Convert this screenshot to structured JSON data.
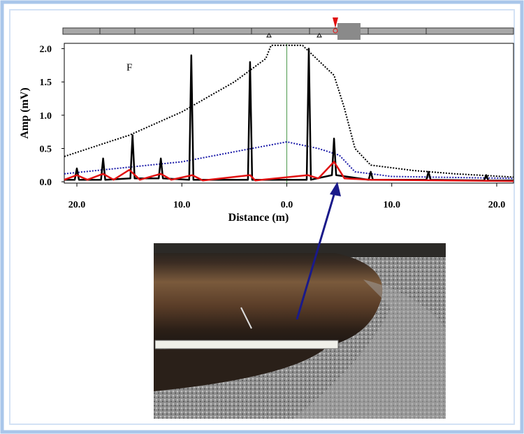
{
  "chart_data": {
    "type": "line",
    "y_label": "Amp (mV)",
    "x_label": "Distance (m)",
    "annotation": "F",
    "xlim": [
      -21.2,
      21.6
    ],
    "ylim": [
      -0.02,
      2.08
    ],
    "xticks": [
      {
        "value": -20,
        "label": "20.0"
      },
      {
        "value": -10,
        "label": "10.0"
      },
      {
        "value": 0,
        "label": "0.0"
      },
      {
        "value": 10,
        "label": "10.0"
      },
      {
        "value": 20,
        "label": "20.0"
      }
    ],
    "yticks": [
      {
        "value": 0,
        "label": "0.0"
      },
      {
        "value": 0.5,
        "label": "0.5"
      },
      {
        "value": 1,
        "label": "1.0"
      },
      {
        "value": 1.5,
        "label": "1.5"
      },
      {
        "value": 2,
        "label": "2.0"
      }
    ],
    "series": [
      {
        "color": "#000000",
        "style": "dotted",
        "x": [
          -21.2,
          -15,
          -10,
          -5,
          -2,
          -1.5,
          1.5,
          4.5,
          5.5,
          6.5,
          8,
          12,
          16,
          21.6
        ],
        "values": [
          0.38,
          0.7,
          1.05,
          1.5,
          1.85,
          2.05,
          2.05,
          1.6,
          1.1,
          0.5,
          0.25,
          0.17,
          0.12,
          0.07
        ]
      },
      {
        "color": "#1a1aa8",
        "style": "dotted",
        "x": [
          -21.2,
          -10,
          -5,
          0,
          3,
          5,
          6.5,
          10,
          21.6
        ],
        "values": [
          0.12,
          0.3,
          0.45,
          0.6,
          0.5,
          0.4,
          0.15,
          0.08,
          0.05
        ]
      },
      {
        "color": "#000000",
        "style": "solid",
        "x": [
          -21.2,
          -20.2,
          -20,
          -19.8,
          -17.7,
          -17.5,
          -17.3,
          -14.9,
          -14.7,
          -14.5,
          -12.2,
          -12,
          -11.8,
          -9.3,
          -9.1,
          -8.9,
          -3.7,
          -3.5,
          -3.3,
          1.9,
          2.1,
          2.3,
          4.3,
          4.5,
          4.7,
          7.8,
          8,
          8.2,
          13.3,
          13.5,
          13.7,
          18.8,
          19,
          19.2,
          21.6
        ],
        "values": [
          0.03,
          0.03,
          0.2,
          0.03,
          0.03,
          0.35,
          0.03,
          0.05,
          0.7,
          0.05,
          0.05,
          0.35,
          0.05,
          0.03,
          1.9,
          0.03,
          0.03,
          1.8,
          0.03,
          0.03,
          2.0,
          0.03,
          0.1,
          0.65,
          0.1,
          0.03,
          0.15,
          0.03,
          0.03,
          0.15,
          0.03,
          0.02,
          0.1,
          0.02,
          0.02
        ]
      },
      {
        "color": "#e01010",
        "style": "solid",
        "x": [
          -21.2,
          -20,
          -19,
          -17.5,
          -16.5,
          -15,
          -14,
          -12,
          -11,
          -9,
          -8,
          -3.5,
          -3,
          2,
          3,
          4.5,
          5.5,
          8,
          21.6
        ],
        "values": [
          0.03,
          0.1,
          0.03,
          0.12,
          0.03,
          0.18,
          0.03,
          0.12,
          0.03,
          0.1,
          0.02,
          0.1,
          0.02,
          0.1,
          0.05,
          0.3,
          0.05,
          0.03,
          0.01
        ]
      }
    ]
  }
}
